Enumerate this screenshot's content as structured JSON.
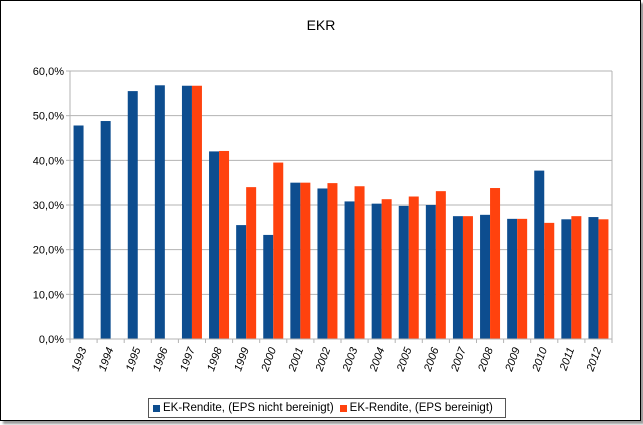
{
  "chart_data": {
    "type": "bar",
    "title": "EKR",
    "xlabel": "",
    "ylabel": "",
    "ylim": [
      0,
      60
    ],
    "yticks": [
      0,
      10,
      20,
      30,
      40,
      50,
      60
    ],
    "ytick_labels": [
      "0,0%",
      "10,0%",
      "20,0%",
      "30,0%",
      "40,0%",
      "50,0%",
      "60,0%"
    ],
    "categories": [
      "1993",
      "1994",
      "1995",
      "1996",
      "1997",
      "1998",
      "1999",
      "2000",
      "2001",
      "2002",
      "2003",
      "2004",
      "2005",
      "2006",
      "2007",
      "2008",
      "2009",
      "2010",
      "2011",
      "2012"
    ],
    "series": [
      {
        "name": "EK-Rendite, (EPS nicht bereinigt)",
        "color": "#0d4d8f",
        "values": [
          47.8,
          48.8,
          55.5,
          56.8,
          56.7,
          42.0,
          25.5,
          23.3,
          35.0,
          33.7,
          30.8,
          30.3,
          29.8,
          30.0,
          27.5,
          27.8,
          26.9,
          37.7,
          26.8,
          27.3
        ]
      },
      {
        "name": "EK-Rendite, (EPS bereinigt)",
        "color": "#ff420e",
        "values": [
          null,
          null,
          null,
          null,
          56.7,
          42.1,
          34.0,
          39.5,
          35.0,
          34.9,
          34.2,
          31.3,
          31.9,
          33.1,
          27.5,
          33.8,
          26.9,
          26.0,
          27.5,
          26.8
        ]
      }
    ],
    "grid": true,
    "legend_position": "bottom"
  }
}
